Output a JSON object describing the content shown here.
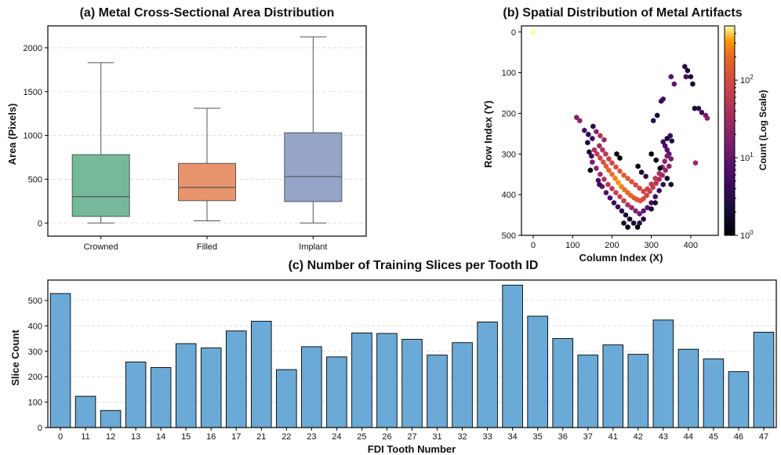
{
  "chart_data": [
    {
      "type": "box",
      "title": "(a) Metal Cross-Sectional Area Distribution",
      "xlabel": "",
      "ylabel": "Area (Pixels)",
      "ylim": [
        -150,
        2250
      ],
      "yticks": [
        0,
        500,
        1000,
        1500,
        2000
      ],
      "grid": true,
      "boxes": [
        {
          "label": "Crowned",
          "min": 0,
          "q1": 75,
          "median": 300,
          "q3": 780,
          "max": 1830,
          "color": "#75b99b"
        },
        {
          "label": "Filled",
          "min": 25,
          "q1": 255,
          "median": 405,
          "q3": 680,
          "max": 1310,
          "color": "#e8956e"
        },
        {
          "label": "Implant",
          "min": 0,
          "q1": 245,
          "median": 530,
          "q3": 1030,
          "max": 2125,
          "color": "#95a4c8"
        }
      ]
    },
    {
      "type": "hexbin",
      "title": "(b) Spatial Distribution of Metal Artifacts",
      "xlabel": "Column Index (X)",
      "ylabel": "Row Index (Y)",
      "xlim": [
        -30,
        470
      ],
      "ylim": [
        500,
        -15
      ],
      "xticks": [
        0,
        100,
        200,
        300,
        400
      ],
      "yticks": [
        0,
        100,
        200,
        300,
        400,
        500
      ],
      "colorbar": {
        "label": "Count (Log Scale)",
        "scale": "log",
        "min": 1,
        "max": 500,
        "ticks": [
          "10^0",
          "10^1",
          "10^2"
        ]
      },
      "points": [
        [
          0,
          0,
          500
        ],
        [
          110,
          210,
          18
        ],
        [
          118,
          218,
          22
        ],
        [
          130,
          242,
          6
        ],
        [
          140,
          252,
          3
        ],
        [
          150,
          262,
          5
        ],
        [
          138,
          272,
          2
        ],
        [
          152,
          232,
          3
        ],
        [
          160,
          245,
          20
        ],
        [
          170,
          255,
          40
        ],
        [
          180,
          265,
          28
        ],
        [
          385,
          85,
          3
        ],
        [
          392,
          95,
          2
        ],
        [
          388,
          110,
          5
        ],
        [
          400,
          110,
          3
        ],
        [
          405,
          128,
          2
        ],
        [
          350,
          110,
          8
        ],
        [
          358,
          128,
          10
        ],
        [
          330,
          165,
          6
        ],
        [
          325,
          170,
          4
        ],
        [
          315,
          205,
          2
        ],
        [
          305,
          218,
          4
        ],
        [
          410,
          188,
          2
        ],
        [
          420,
          188,
          3
        ],
        [
          428,
          198,
          5
        ],
        [
          438,
          205,
          14
        ],
        [
          442,
          212,
          20
        ],
        [
          412,
          322,
          30
        ],
        [
          348,
          255,
          4
        ],
        [
          340,
          262,
          2
        ],
        [
          352,
          268,
          3
        ],
        [
          155,
          290,
          40
        ],
        [
          162,
          300,
          60
        ],
        [
          170,
          310,
          80
        ],
        [
          178,
          320,
          100
        ],
        [
          185,
          330,
          150
        ],
        [
          192,
          340,
          180
        ],
        [
          200,
          350,
          220
        ],
        [
          208,
          360,
          260
        ],
        [
          216,
          370,
          300
        ],
        [
          224,
          380,
          260
        ],
        [
          232,
          388,
          220
        ],
        [
          240,
          395,
          200
        ],
        [
          248,
          402,
          180
        ],
        [
          256,
          408,
          150
        ],
        [
          264,
          412,
          130
        ],
        [
          272,
          415,
          110
        ],
        [
          280,
          410,
          100
        ],
        [
          288,
          402,
          80
        ],
        [
          296,
          392,
          70
        ],
        [
          304,
          382,
          60
        ],
        [
          312,
          372,
          50
        ],
        [
          320,
          362,
          40
        ],
        [
          328,
          352,
          30
        ],
        [
          336,
          340,
          25
        ],
        [
          345,
          330,
          20
        ],
        [
          350,
          312,
          15
        ],
        [
          345,
          300,
          10
        ],
        [
          340,
          290,
          8
        ],
        [
          335,
          280,
          6
        ],
        [
          330,
          270,
          5
        ],
        [
          168,
          280,
          30
        ],
        [
          176,
          290,
          45
        ],
        [
          184,
          300,
          55
        ],
        [
          192,
          312,
          70
        ],
        [
          200,
          322,
          90
        ],
        [
          210,
          332,
          110
        ],
        [
          220,
          342,
          130
        ],
        [
          230,
          352,
          150
        ],
        [
          240,
          360,
          140
        ],
        [
          250,
          368,
          120
        ],
        [
          260,
          376,
          100
        ],
        [
          270,
          384,
          90
        ],
        [
          280,
          392,
          80
        ],
        [
          290,
          386,
          70
        ],
        [
          300,
          374,
          60
        ],
        [
          310,
          360,
          50
        ],
        [
          320,
          348,
          40
        ],
        [
          328,
          332,
          30
        ],
        [
          334,
          318,
          22
        ],
        [
          340,
          305,
          16
        ],
        [
          150,
          320,
          15
        ],
        [
          160,
          335,
          20
        ],
        [
          170,
          350,
          30
        ],
        [
          180,
          362,
          40
        ],
        [
          190,
          375,
          50
        ],
        [
          200,
          385,
          60
        ],
        [
          210,
          395,
          70
        ],
        [
          220,
          405,
          80
        ],
        [
          230,
          415,
          60
        ],
        [
          240,
          425,
          40
        ],
        [
          250,
          432,
          30
        ],
        [
          260,
          440,
          20
        ],
        [
          270,
          447,
          12
        ],
        [
          280,
          440,
          10
        ],
        [
          290,
          432,
          8
        ],
        [
          300,
          420,
          6
        ],
        [
          310,
          405,
          5
        ],
        [
          320,
          390,
          4
        ],
        [
          330,
          375,
          3
        ],
        [
          340,
          360,
          2
        ],
        [
          175,
          380,
          10
        ],
        [
          185,
          395,
          8
        ],
        [
          195,
          408,
          6
        ],
        [
          205,
          420,
          5
        ],
        [
          215,
          430,
          4
        ],
        [
          225,
          440,
          3
        ],
        [
          235,
          450,
          2
        ],
        [
          245,
          460,
          2
        ],
        [
          255,
          470,
          2
        ],
        [
          265,
          480,
          1
        ],
        [
          270,
          470,
          3
        ],
        [
          280,
          460,
          2
        ],
        [
          230,
          470,
          2
        ],
        [
          240,
          480,
          1
        ],
        [
          300,
          435,
          2
        ],
        [
          310,
          420,
          2
        ],
        [
          350,
          375,
          2
        ],
        [
          322,
          335,
          1
        ],
        [
          312,
          315,
          1
        ],
        [
          300,
          300,
          1
        ],
        [
          148,
          305,
          5
        ],
        [
          142,
          295,
          2
        ],
        [
          165,
          365,
          6
        ],
        [
          168,
          375,
          4
        ],
        [
          145,
          340,
          1
        ],
        [
          212,
          300,
          1
        ],
        [
          220,
          310,
          1
        ],
        [
          266,
          330,
          1
        ],
        [
          275,
          345,
          2
        ],
        [
          286,
          355,
          3
        ]
      ]
    },
    {
      "type": "bar",
      "title": "(c) Number of Training Slices per Tooth ID",
      "xlabel": "FDI Tooth Number",
      "ylabel": "Slice Count",
      "categories": [
        "0",
        "11",
        "12",
        "13",
        "14",
        "15",
        "16",
        "17",
        "21",
        "22",
        "23",
        "24",
        "25",
        "26",
        "27",
        "31",
        "32",
        "33",
        "34",
        "35",
        "36",
        "37",
        "41",
        "42",
        "43",
        "44",
        "45",
        "46",
        "47"
      ],
      "values": [
        527,
        123,
        67,
        258,
        236,
        330,
        313,
        380,
        418,
        228,
        318,
        278,
        372,
        370,
        347,
        285,
        334,
        415,
        560,
        438,
        350,
        285,
        325,
        288,
        423,
        308,
        270,
        220,
        375
      ],
      "ylim": [
        0,
        580
      ],
      "yticks": [
        0,
        100,
        200,
        300,
        400,
        500
      ],
      "color": "#6baad6",
      "grid": true
    }
  ]
}
